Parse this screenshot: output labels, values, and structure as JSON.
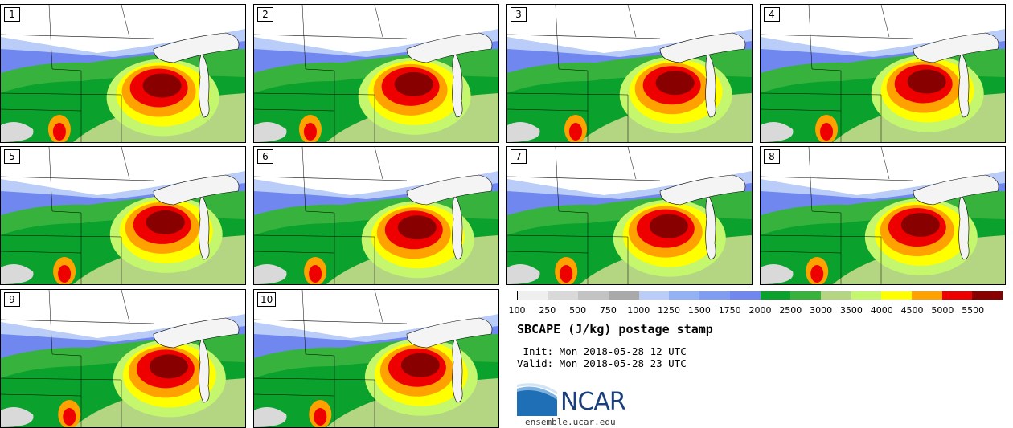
{
  "panels": [
    {
      "label": "1"
    },
    {
      "label": "2"
    },
    {
      "label": "3"
    },
    {
      "label": "4"
    },
    {
      "label": "5"
    },
    {
      "label": "6"
    },
    {
      "label": "7"
    },
    {
      "label": "8"
    },
    {
      "label": "9"
    },
    {
      "label": "10"
    }
  ],
  "colorbar": {
    "colors": [
      "#efefef",
      "#d9d9d9",
      "#c3c3c3",
      "#a9a9a9",
      "#b9cdf8",
      "#93b2f5",
      "#7f9ef3",
      "#6f87ee",
      "#0aa22c",
      "#37b33d",
      "#b4d582",
      "#c4f76e",
      "#ffff00",
      "#ffa200",
      "#ef0000",
      "#890000"
    ],
    "tick_labels": [
      "100",
      "250",
      "500",
      "750",
      "1000",
      "1250",
      "1500",
      "1750",
      "2000",
      "2500",
      "3000",
      "3500",
      "4000",
      "4500",
      "5000",
      "5500"
    ]
  },
  "title": "SBCAPE (J/kg) postage stamp",
  "init_line": " Init: Mon 2018-05-28 12 UTC",
  "valid_line": "Valid: Mon 2018-05-28 23 UTC",
  "logo": {
    "text": "NCAR",
    "color": "#1b3f7b"
  },
  "site": "ensemble.ucar.edu"
}
